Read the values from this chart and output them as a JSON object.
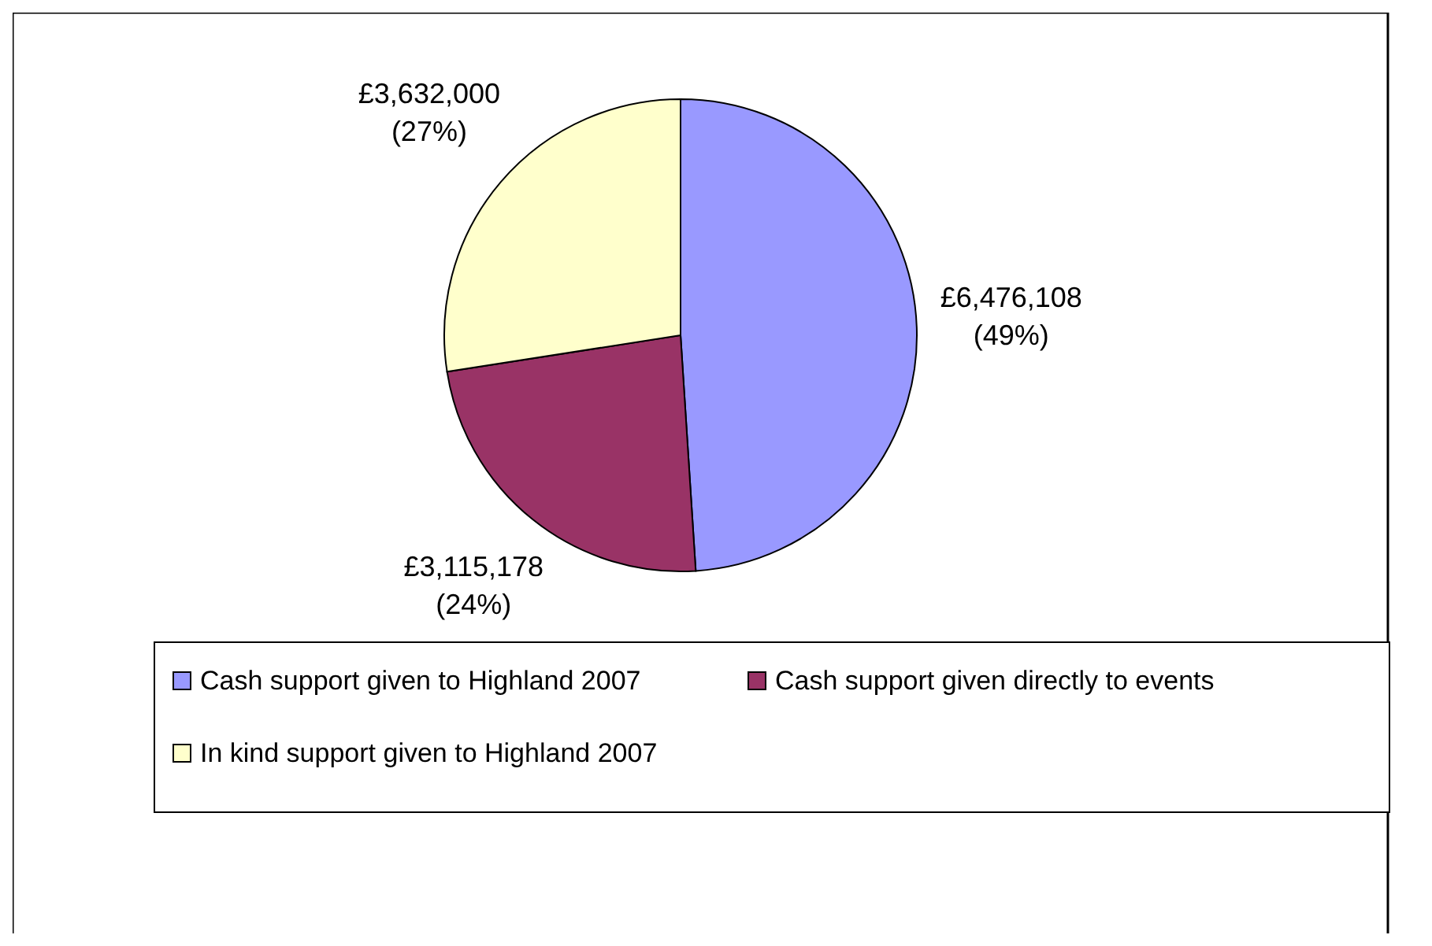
{
  "chart_data": {
    "type": "pie",
    "categories": [
      "Cash support given to Highland 2007",
      "Cash support given directly to events",
      "In kind support given to Highland 2007"
    ],
    "values": [
      6476108,
      3115178,
      3632000
    ],
    "colors": [
      "#9999ff",
      "#993366",
      "#ffffcc"
    ],
    "value_labels": [
      "£6,476,108\n(49%)",
      "£3,115,178\n(24%)",
      "£3,632,000\n(27%)"
    ],
    "legend": "bottom"
  }
}
